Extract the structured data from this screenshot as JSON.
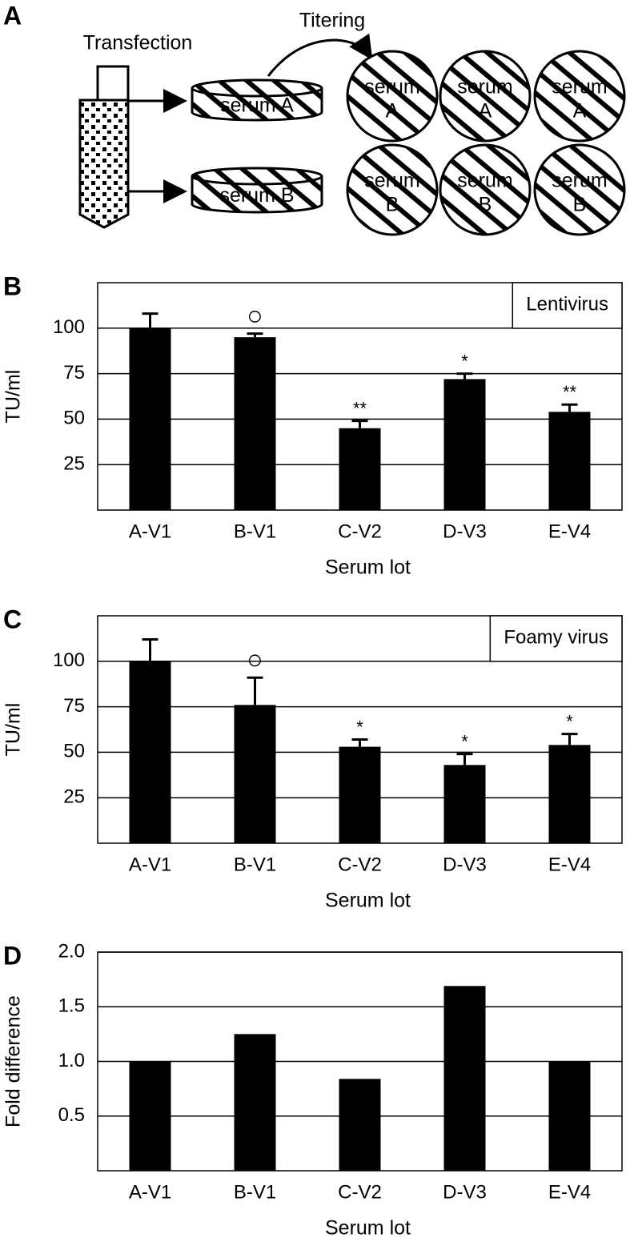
{
  "diagram": {
    "panel_label": "A",
    "transfection": "Transfection",
    "titering": "Titering",
    "dishes": [
      "serum A",
      "serum B"
    ],
    "plates": [
      {
        "line1": "serum",
        "line2": "A"
      },
      {
        "line1": "serum",
        "line2": "A"
      },
      {
        "line1": "serum",
        "line2": "A"
      },
      {
        "line1": "serum",
        "line2": "B"
      },
      {
        "line1": "serum",
        "line2": "B"
      },
      {
        "line1": "serum",
        "line2": "B"
      }
    ]
  },
  "chart_data": [
    {
      "type": "bar",
      "panel_label": "B",
      "y_label": "TU/ml",
      "x_label": "Serum lot",
      "categories": [
        "A-V1",
        "B-V1",
        "C-V2",
        "D-V3",
        "E-V4"
      ],
      "series": [
        {
          "name": "Lentivirus",
          "color": "#000000",
          "values": [
            100,
            95,
            45,
            72,
            54
          ],
          "errors": [
            8,
            2,
            4,
            3,
            4
          ]
        }
      ],
      "annotations": [
        null,
        "○",
        "**",
        "*",
        "**"
      ],
      "ylim": [
        0,
        125
      ],
      "yticks": [
        25,
        50,
        75,
        100
      ],
      "grid": true,
      "legend": "top-right"
    },
    {
      "type": "bar",
      "panel_label": "C",
      "y_label": "TU/ml",
      "x_label": "Serum lot",
      "categories": [
        "A-V1",
        "B-V1",
        "C-V2",
        "D-V3",
        "E-V4"
      ],
      "series": [
        {
          "name": "Foamy virus",
          "color": "#000000",
          "values": [
            100,
            76,
            53,
            43,
            54
          ],
          "errors": [
            12,
            15,
            4,
            6,
            6
          ]
        }
      ],
      "annotations": [
        null,
        "○",
        "*",
        "*",
        "*"
      ],
      "ylim": [
        0,
        125
      ],
      "yticks": [
        25,
        50,
        75,
        100
      ],
      "grid": true,
      "legend": "top-right"
    },
    {
      "type": "bar",
      "panel_label": "D",
      "y_label": "Fold difference",
      "x_label": "Serum lot",
      "categories": [
        "A-V1",
        "B-V1",
        "C-V2",
        "D-V3",
        "E-V4"
      ],
      "series": [
        {
          "color": "#000000",
          "values": [
            1.0,
            1.25,
            0.84,
            1.69,
            1.0
          ]
        }
      ],
      "ylim": [
        0,
        2.0
      ],
      "yticks": [
        0.5,
        {
          "value": 1.0,
          "label": "1.0"
        },
        1.5,
        {
          "value": 2.0,
          "label": "2.0"
        }
      ],
      "grid": true
    }
  ]
}
